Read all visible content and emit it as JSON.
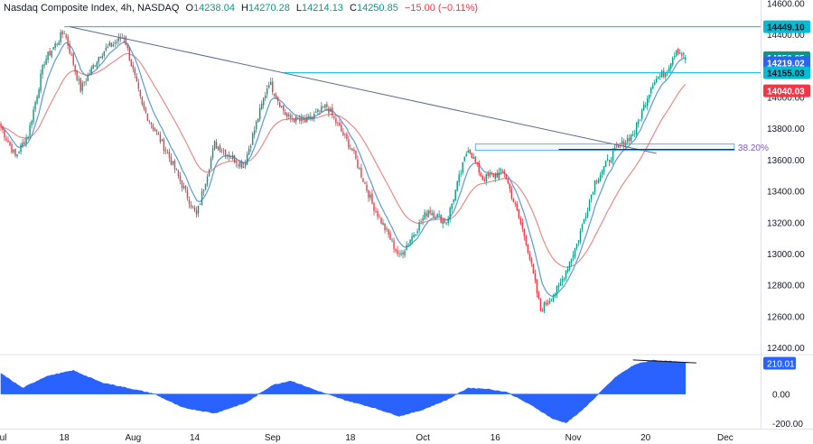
{
  "header": {
    "symbol": "Nasdaq Composite Index, 4h, NASDAQ",
    "open_label": "O",
    "open": "14238.04",
    "high_label": "H",
    "high": "14270.28",
    "low_label": "L",
    "low": "14214.13",
    "close_label": "C",
    "close": "14250.85",
    "change": "−15.00 (−0.11%)"
  },
  "chart_data": {
    "type": "candlestick",
    "symbol": "Nasdaq Composite Index",
    "timeframe": "4h",
    "exchange": "NASDAQ",
    "price_axis": {
      "ylim": [
        12360,
        14620
      ],
      "ticks": [
        "14600.00",
        "14400.00",
        "14200.00",
        "14000.00",
        "13800.00",
        "13600.00",
        "13400.00",
        "13200.00",
        "13000.00",
        "12800.00",
        "12600.00",
        "12400.00"
      ],
      "tick_values": [
        14600,
        14400,
        14200,
        14000,
        13800,
        13600,
        13400,
        13200,
        13000,
        12800,
        12600,
        12400
      ]
    },
    "time_axis": {
      "labels": [
        "Jul",
        "18",
        "Aug",
        "14",
        "Sep",
        "18",
        "Oct",
        "16",
        "Nov",
        "20",
        "Dec"
      ],
      "label_index": [
        0,
        35,
        73,
        107,
        150,
        193,
        233,
        273,
        316,
        356,
        400
      ],
      "n_slots": 420
    },
    "price_labels": [
      {
        "value": 14449.1,
        "text": "14449.10",
        "color": "#00bcd4",
        "text_color": "#131722"
      },
      {
        "value": 14250.85,
        "text": "14250.85",
        "color": "#089981",
        "text_color": "#ffffff"
      },
      {
        "value": 14219.02,
        "text": "14219.02",
        "color": "#2962ff",
        "text_color": "#ffffff"
      },
      {
        "value": 14155.03,
        "text": "14155.03",
        "color": "#00bcd4",
        "text_color": "#131722"
      },
      {
        "value": 14040.03,
        "text": "14040.03",
        "color": "#f23645",
        "text_color": "#ffffff"
      }
    ],
    "horizontal_lines": [
      {
        "value": 14449.1,
        "x_start": 35,
        "color": "#00bcd4"
      },
      {
        "value": 14155.03,
        "x_start": 156,
        "color": "#00bcd4"
      }
    ],
    "trendline": {
      "x1": 38,
      "y1": 14449.1,
      "x2": 362,
      "y2": 13640,
      "color": "#5b6c8f"
    },
    "fib_level": {
      "label": "38.20%",
      "x_start": 262,
      "x_end": 405,
      "y_top": 13700,
      "y_bottom": 13660,
      "color": "#42a5f5"
    },
    "support_line": {
      "value": 13665,
      "x_start": 308,
      "x_end": 405,
      "color": "#131722"
    },
    "series": [
      {
        "name": "Close",
        "color_up": "#089981",
        "color_down": "#f23645",
        "waypoints": [
          [
            0,
            13810
          ],
          [
            8,
            13620
          ],
          [
            15,
            13760
          ],
          [
            24,
            14230
          ],
          [
            35,
            14420
          ],
          [
            44,
            14050
          ],
          [
            55,
            14280
          ],
          [
            68,
            14390
          ],
          [
            78,
            13940
          ],
          [
            92,
            13640
          ],
          [
            108,
            13240
          ],
          [
            118,
            13700
          ],
          [
            134,
            13560
          ],
          [
            148,
            14100
          ],
          [
            158,
            13870
          ],
          [
            168,
            13840
          ],
          [
            180,
            13940
          ],
          [
            194,
            13660
          ],
          [
            205,
            13320
          ],
          [
            220,
            12980
          ],
          [
            236,
            13280
          ],
          [
            246,
            13200
          ],
          [
            258,
            13680
          ],
          [
            266,
            13480
          ],
          [
            278,
            13520
          ],
          [
            290,
            13080
          ],
          [
            298,
            12640
          ],
          [
            308,
            12780
          ],
          [
            318,
            13060
          ],
          [
            328,
            13460
          ],
          [
            338,
            13640
          ],
          [
            350,
            13780
          ],
          [
            360,
            14100
          ],
          [
            367,
            14160
          ],
          [
            373,
            14310
          ],
          [
            378,
            14251
          ]
        ]
      },
      {
        "name": "Fast MA",
        "color": "#5b9bd5"
      },
      {
        "name": "Slow MA",
        "color": "#e88b8b"
      }
    ],
    "oscillator": {
      "ylim": [
        -230,
        250
      ],
      "ticks": [
        "0.00",
        "-200.00"
      ],
      "tick_values": [
        0,
        -200
      ],
      "last_value": "210.01",
      "color": "#2962ff",
      "waypoints": [
        [
          0,
          140
        ],
        [
          12,
          40
        ],
        [
          25,
          120
        ],
        [
          40,
          160
        ],
        [
          55,
          80
        ],
        [
          70,
          40
        ],
        [
          85,
          0
        ],
        [
          100,
          -90
        ],
        [
          118,
          -130
        ],
        [
          135,
          -60
        ],
        [
          150,
          60
        ],
        [
          160,
          90
        ],
        [
          175,
          20
        ],
        [
          190,
          -40
        ],
        [
          205,
          -90
        ],
        [
          220,
          -150
        ],
        [
          232,
          -110
        ],
        [
          246,
          -40
        ],
        [
          258,
          40
        ],
        [
          268,
          35
        ],
        [
          280,
          10
        ],
        [
          295,
          -90
        ],
        [
          305,
          -170
        ],
        [
          312,
          -195
        ],
        [
          320,
          -120
        ],
        [
          330,
          0
        ],
        [
          340,
          120
        ],
        [
          350,
          200
        ],
        [
          360,
          230
        ],
        [
          372,
          220
        ],
        [
          378,
          210
        ]
      ],
      "divergence_line": {
        "x1": 349,
        "y1": 232,
        "x2": 384,
        "y2": 212,
        "color": "#131722"
      }
    }
  }
}
